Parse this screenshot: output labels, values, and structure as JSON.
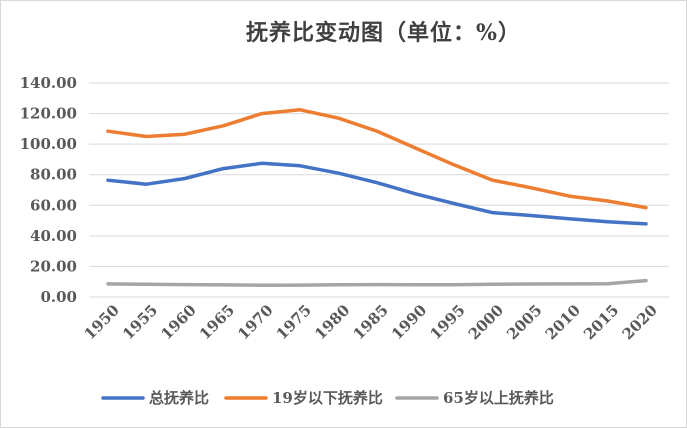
{
  "chart_data": {
    "type": "line",
    "title": "抚养比变动图（单位：%）",
    "categories": [
      "1950",
      "1955",
      "1960",
      "1965",
      "1970",
      "1975",
      "1980",
      "1985",
      "1990",
      "1995",
      "2000",
      "2005",
      "2010",
      "2015",
      "2020"
    ],
    "y_tick_labels": [
      "0.00",
      "20.00",
      "40.00",
      "60.00",
      "80.00",
      "100.00",
      "120.00",
      "140.00"
    ],
    "ylim": [
      0,
      140
    ],
    "grid": true,
    "legend_position": "bottom",
    "series": [
      {
        "name": "总抚养比",
        "color": "#4472c4",
        "values": [
          76.4,
          73.8,
          77.5,
          84.0,
          87.5,
          85.8,
          81.0,
          74.8,
          67.5,
          61.2,
          55.2,
          53.3,
          51.2,
          49.2,
          47.8
        ]
      },
      {
        "name": "19岁以下抚养比",
        "color": "#ed7d31",
        "values": [
          108.5,
          105.0,
          106.5,
          112.0,
          120.0,
          122.5,
          117.0,
          108.5,
          97.5,
          86.5,
          76.5,
          71.5,
          66.0,
          62.8,
          58.5
        ]
      },
      {
        "name": "65岁以上抚养比",
        "color": "#a5a5a5",
        "values": [
          8.6,
          8.3,
          8.1,
          7.9,
          7.7,
          7.8,
          8.0,
          8.1,
          8.0,
          8.0,
          8.4,
          8.5,
          8.6,
          8.7,
          10.7
        ]
      }
    ]
  }
}
